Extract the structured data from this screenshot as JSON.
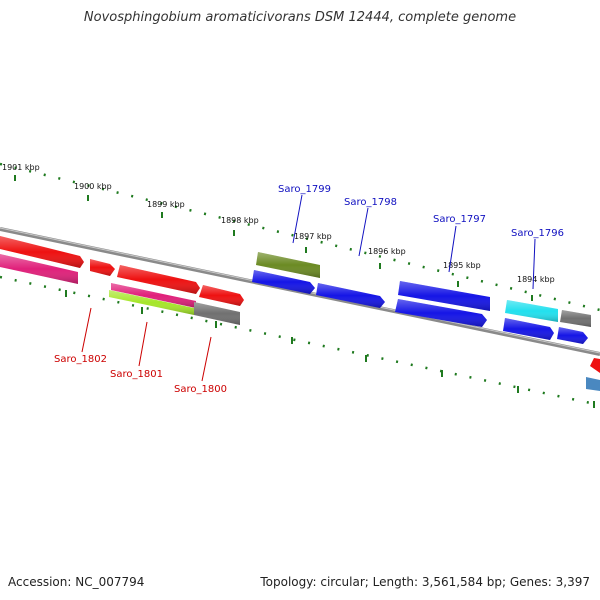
{
  "title": "Novosphingobium aromaticivorans DSM 12444, complete genome",
  "accession": "Accession: NC_007794",
  "summary": "Topology: circular; Length: 3,561,584 bp; Genes: 3,397",
  "colors": {
    "backbone": "#8a8a8a",
    "tick": "#1f7a1f",
    "label_top": "#1010c0",
    "label_bottom": "#cc0000"
  },
  "tick_labels": [
    {
      "id": "t1901",
      "text": "1901 kbp"
    },
    {
      "id": "t1900",
      "text": "1900 kbp"
    },
    {
      "id": "t1899",
      "text": "1899 kbp"
    },
    {
      "id": "t1898",
      "text": "1898 kbp"
    },
    {
      "id": "t1897",
      "text": "1897 kbp"
    },
    {
      "id": "t1896",
      "text": "1896 kbp"
    },
    {
      "id": "t1895",
      "text": "1895 kbp"
    },
    {
      "id": "t1894",
      "text": "1894 kbp"
    }
  ],
  "gene_labels_top": [
    "Saro_1799",
    "Saro_1798",
    "Saro_1797",
    "Saro_1796"
  ],
  "gene_labels_bottom": [
    "Saro_1802",
    "Saro_1801",
    "Saro_1800"
  ],
  "features": [
    {
      "id": "f1",
      "color": "#ee1111"
    },
    {
      "id": "f2",
      "color": "#ee1111"
    },
    {
      "id": "f3",
      "color": "#ee1111"
    },
    {
      "id": "f4",
      "color": "#ee1111"
    },
    {
      "id": "f5",
      "color": "#e0207a"
    },
    {
      "id": "f6",
      "color": "#e0207a"
    },
    {
      "id": "f7",
      "color": "#a6e62a"
    },
    {
      "id": "f8",
      "color": "#707070"
    },
    {
      "id": "f9",
      "color": "#6b8a23"
    },
    {
      "id": "f10",
      "color": "#1515e6"
    },
    {
      "id": "f11",
      "color": "#1515e6"
    },
    {
      "id": "f12",
      "color": "#1515e6"
    },
    {
      "id": "f13",
      "color": "#1515e6"
    },
    {
      "id": "f14",
      "color": "#1515e6"
    },
    {
      "id": "f15",
      "color": "#1515e6"
    },
    {
      "id": "f16",
      "color": "#22e0ee"
    },
    {
      "id": "f17",
      "color": "#707070"
    },
    {
      "id": "f18",
      "color": "#ee1111"
    },
    {
      "id": "f19",
      "color": "#4a88c0"
    }
  ]
}
